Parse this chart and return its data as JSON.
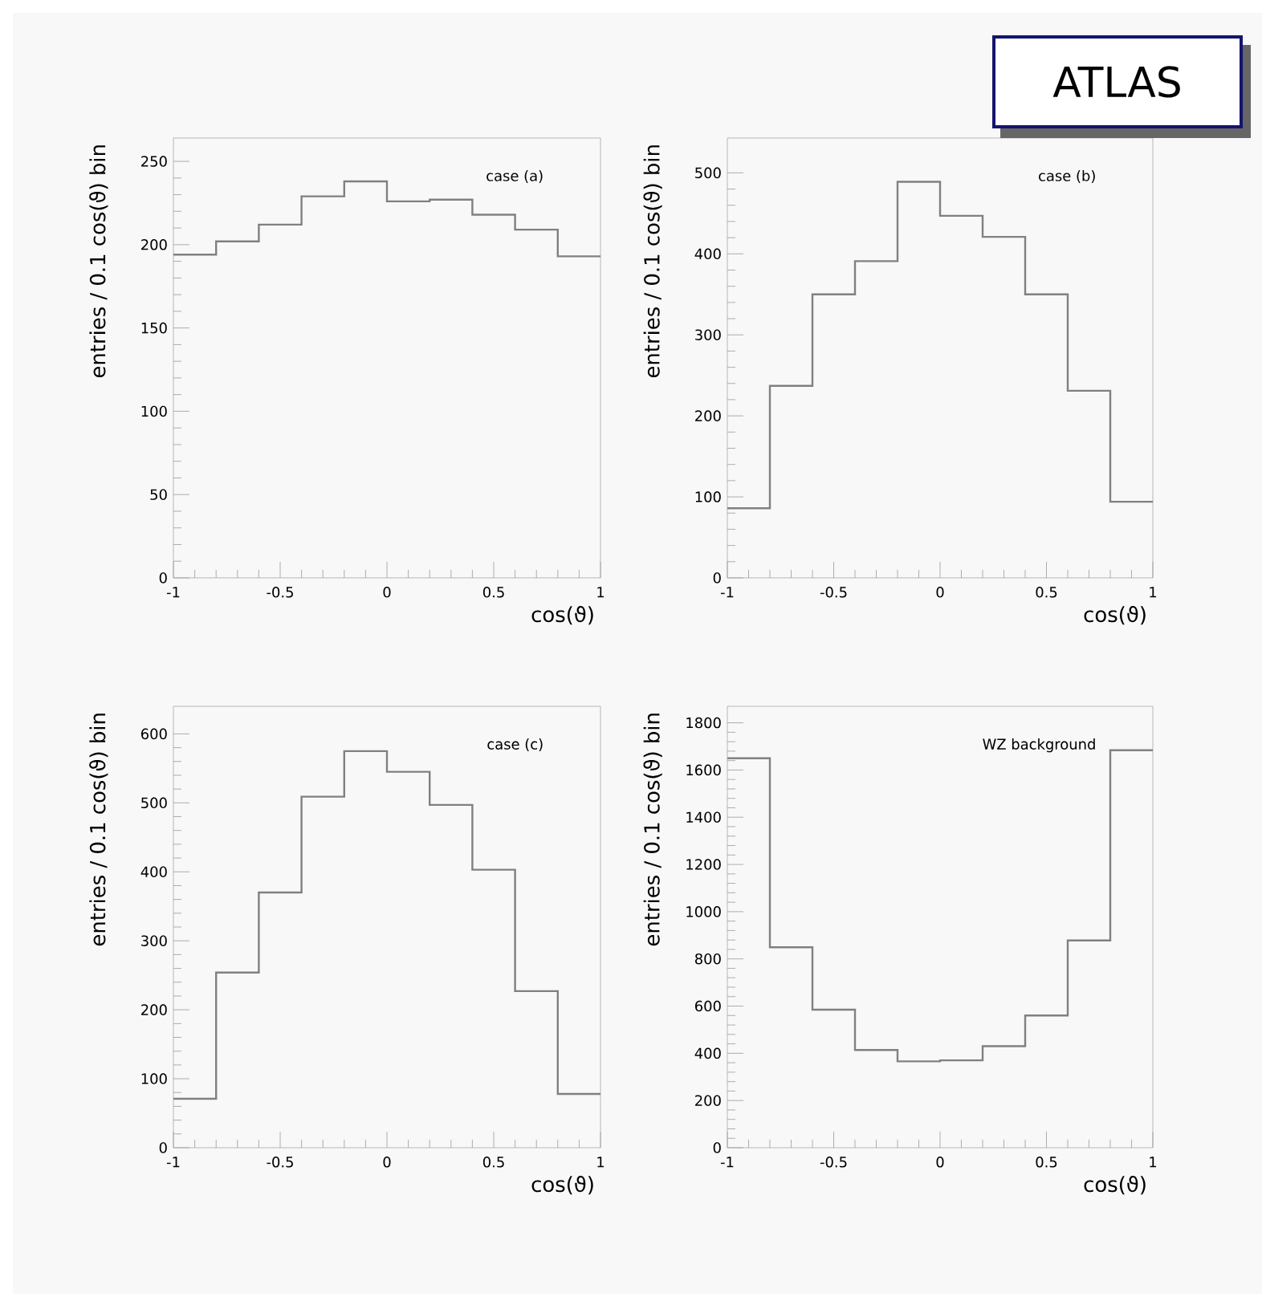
{
  "chart_data": [
    {
      "type": "histogram",
      "bins": [
        -1,
        -0.8,
        -0.6,
        -0.4,
        -0.2,
        0,
        0.2,
        0.4,
        0.6,
        0.8,
        1
      ],
      "values": [
        194,
        202,
        212,
        229,
        238,
        226,
        227,
        218,
        209,
        193
      ],
      "color": "#808080",
      "xlabel": "cos(ϑ)",
      "ylabel": "entries / 0.1 cos(ϑ) bin",
      "annotations": [
        "case (a)"
      ],
      "xlim": [
        -1,
        1
      ],
      "ylim": [
        0,
        264
      ],
      "xticks": [
        -1,
        -0.5,
        0,
        0.5,
        1
      ],
      "yticks": [
        0,
        50,
        100,
        150,
        200,
        250
      ]
    },
    {
      "type": "histogram",
      "bins": [
        -1,
        -0.8,
        -0.6,
        -0.4,
        -0.2,
        0,
        0.2,
        0.4,
        0.6,
        0.8,
        1
      ],
      "values": [
        86,
        237,
        350,
        391,
        489,
        447,
        421,
        350,
        231,
        94
      ],
      "color": "#808080",
      "xlabel": "cos(ϑ)",
      "ylabel": "entries / 0.1 cos(ϑ) bin",
      "annotations": [
        "case (b)",
        "ATLAS"
      ],
      "xlim": [
        -1,
        1
      ],
      "ylim": [
        0,
        543
      ],
      "xticks": [
        -1,
        -0.5,
        0,
        0.5,
        1
      ],
      "yticks": [
        0,
        100,
        200,
        300,
        400,
        500
      ]
    },
    {
      "type": "histogram",
      "bins": [
        -1,
        -0.8,
        -0.6,
        -0.4,
        -0.2,
        0,
        0.2,
        0.4,
        0.6,
        0.8,
        1
      ],
      "values": [
        71,
        254,
        370,
        509,
        575,
        545,
        497,
        403,
        227,
        78
      ],
      "color": "#808080",
      "xlabel": "cos(ϑ)",
      "ylabel": "entries / 0.1 cos(ϑ) bin",
      "annotations": [
        "case (c)"
      ],
      "xlim": [
        -1,
        1
      ],
      "ylim": [
        0,
        640
      ],
      "xticks": [
        -1,
        -0.5,
        0,
        0.5,
        1
      ],
      "yticks": [
        0,
        100,
        200,
        300,
        400,
        500,
        600
      ]
    },
    {
      "type": "histogram",
      "bins": [
        -1,
        -0.8,
        -0.6,
        -0.4,
        -0.2,
        0,
        0.2,
        0.4,
        0.6,
        0.8,
        1
      ],
      "values": [
        1650,
        849,
        585,
        414,
        366,
        370,
        430,
        560,
        878,
        1684
      ],
      "color": "#808080",
      "xlabel": "cos(ϑ)",
      "ylabel": "entries / 0.1 cos(ϑ) bin",
      "annotations": [
        "WZ background"
      ],
      "xlim": [
        -1,
        1
      ],
      "ylim": [
        0,
        1870
      ],
      "xticks": [
        -1,
        -0.5,
        0,
        0.5,
        1
      ],
      "yticks": [
        0,
        200,
        400,
        600,
        800,
        1000,
        1200,
        1400,
        1600,
        1800
      ]
    }
  ]
}
